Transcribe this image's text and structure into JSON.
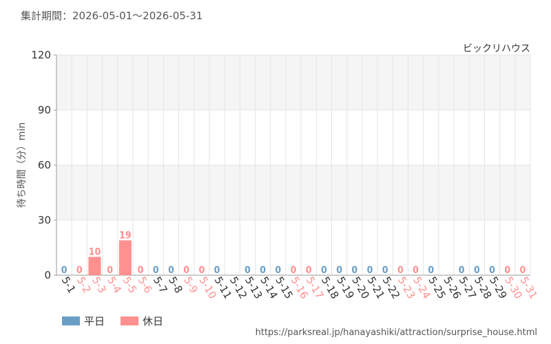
{
  "chart_data": {
    "type": "bar",
    "title": "集計期間：2026-05-01～2026-05-31",
    "subtitle": "ビックリハウス",
    "y_label": "待ち時間（分）min",
    "categories": [
      "5-1",
      "5-2",
      "5-3",
      "5-4",
      "5-5",
      "5-6",
      "5-7",
      "5-8",
      "5-9",
      "5-10",
      "5-11",
      "5-12",
      "5-13",
      "5-14",
      "5-15",
      "5-16",
      "5-17",
      "5-18",
      "5-19",
      "5-20",
      "5-21",
      "5-22",
      "5-23",
      "5-24",
      "5-25",
      "5-26",
      "5-27",
      "5-28",
      "5-29",
      "5-30",
      "5-31"
    ],
    "series": [
      {
        "name": "平日",
        "color": "#6a9ec5",
        "values": [
          0,
          null,
          null,
          null,
          null,
          null,
          0,
          0,
          null,
          null,
          0,
          null,
          0,
          0,
          0,
          null,
          null,
          0,
          0,
          0,
          0,
          0,
          null,
          null,
          0,
          null,
          0,
          0,
          0,
          null,
          null
        ]
      },
      {
        "name": "休日",
        "color": "#ff9090",
        "values": [
          null,
          0,
          10,
          0,
          19,
          0,
          null,
          null,
          0,
          0,
          null,
          null,
          null,
          null,
          null,
          0,
          0,
          null,
          null,
          null,
          null,
          null,
          0,
          0,
          null,
          null,
          null,
          null,
          null,
          0,
          0
        ]
      }
    ],
    "ylim": [
      0,
      120
    ],
    "yticks": [
      0,
      30,
      60,
      90,
      120
    ],
    "grid": true,
    "source": "https://parksreal.jp/hanayashiki/attraction/surprise_house.html"
  }
}
